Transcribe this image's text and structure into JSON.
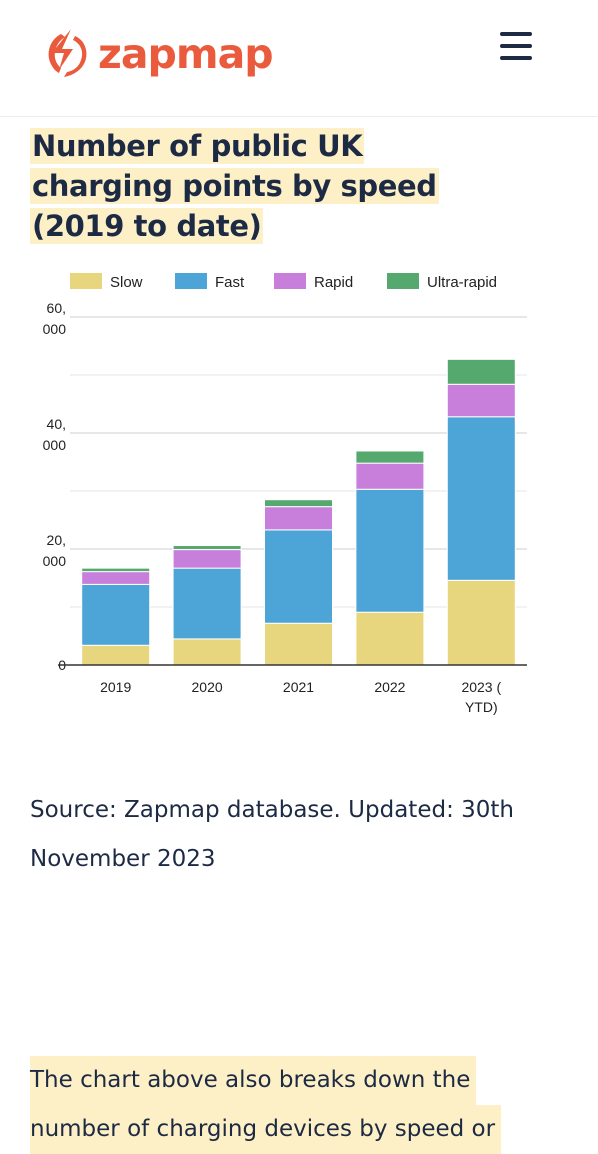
{
  "header": {
    "brand_name": "zapmap",
    "brand_color": "#ea5a3c",
    "logo_icon": "lightning-bolt-icon",
    "menu_icon": "hamburger-menu-icon"
  },
  "article": {
    "title": "Number of public UK charging points by speed (2019 to date)",
    "source": "Source: Zapmap database. Updated: 30th November 2023",
    "body_lines": [
      "The chart above also breaks down the",
      "number of charging devices by speed or"
    ],
    "highlight_color": "#fdf0c6"
  },
  "chart_data": {
    "type": "bar",
    "stacked": true,
    "categories": [
      "2019",
      "2020",
      "2021",
      "2022",
      "2023 (\nYTD)"
    ],
    "series": [
      {
        "name": "Slow",
        "color": "#e8d67e",
        "values": [
          3400,
          4500,
          7200,
          9100,
          14600
        ]
      },
      {
        "name": "Fast",
        "color": "#4da4d6",
        "values": [
          10500,
          12200,
          16100,
          21200,
          28200
        ]
      },
      {
        "name": "Rapid",
        "color": "#c77fdb",
        "values": [
          2200,
          3200,
          4000,
          4500,
          5600
        ]
      },
      {
        "name": "Ultra-rapid",
        "color": "#55a96e",
        "values": [
          600,
          700,
          1200,
          2100,
          4300
        ]
      }
    ],
    "y_ticks": [
      "0",
      "20,\n000",
      "40,\n000",
      "60,\n000"
    ],
    "ylim": [
      0,
      60000
    ],
    "grid": true,
    "legend_position": "top"
  }
}
